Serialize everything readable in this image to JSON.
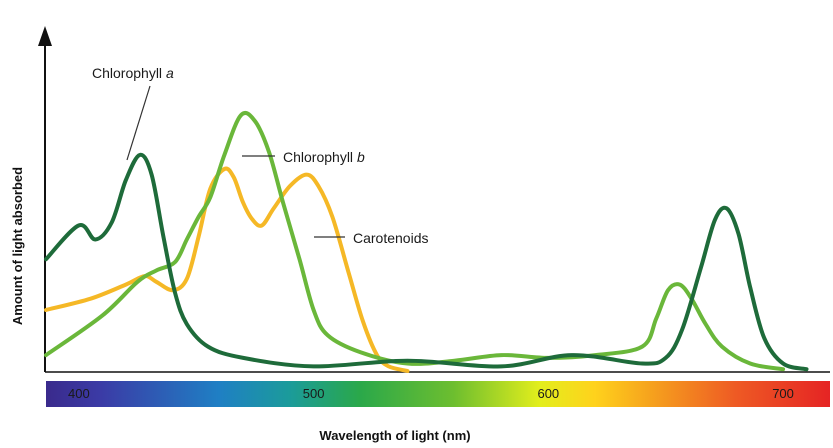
{
  "chart_data": {
    "type": "line",
    "xlabel": "Wavelength of light (nm)",
    "ylabel": "Amount of light absorbed",
    "xlim": [
      386,
      720
    ],
    "ylim": [
      0,
      1
    ],
    "x_ticks": [
      400,
      500,
      600,
      700
    ],
    "grid": false,
    "spectrum_bar": true,
    "series": [
      {
        "name": "Chlorophyll a",
        "name_parts": [
          "Chlorophyll ",
          "a"
        ],
        "color": "#1e6b3a",
        "points": [
          [
            386,
            0.4
          ],
          [
            400,
            0.52
          ],
          [
            407,
            0.47
          ],
          [
            414,
            0.53
          ],
          [
            420,
            0.68
          ],
          [
            426,
            0.77
          ],
          [
            431,
            0.7
          ],
          [
            436,
            0.48
          ],
          [
            441,
            0.28
          ],
          [
            446,
            0.17
          ],
          [
            455,
            0.09
          ],
          [
            470,
            0.05
          ],
          [
            500,
            0.02
          ],
          [
            540,
            0.04
          ],
          [
            580,
            0.02
          ],
          [
            610,
            0.06
          ],
          [
            640,
            0.03
          ],
          [
            650,
            0.05
          ],
          [
            657,
            0.15
          ],
          [
            665,
            0.37
          ],
          [
            671,
            0.54
          ],
          [
            676,
            0.58
          ],
          [
            681,
            0.49
          ],
          [
            686,
            0.3
          ],
          [
            692,
            0.12
          ],
          [
            700,
            0.03
          ],
          [
            710,
            0.01
          ]
        ]
      },
      {
        "name": "Chlorophyll b",
        "name_parts": [
          "Chlorophyll ",
          "b"
        ],
        "color": "#6ab73a",
        "points": [
          [
            386,
            0.06
          ],
          [
            410,
            0.2
          ],
          [
            425,
            0.32
          ],
          [
            433,
            0.36
          ],
          [
            441,
            0.39
          ],
          [
            446,
            0.47
          ],
          [
            451,
            0.55
          ],
          [
            456,
            0.62
          ],
          [
            462,
            0.77
          ],
          [
            469,
            0.91
          ],
          [
            475,
            0.89
          ],
          [
            481,
            0.78
          ],
          [
            487,
            0.6
          ],
          [
            494,
            0.4
          ],
          [
            500,
            0.22
          ],
          [
            506,
            0.13
          ],
          [
            520,
            0.07
          ],
          [
            540,
            0.03
          ],
          [
            560,
            0.04
          ],
          [
            580,
            0.06
          ],
          [
            600,
            0.05
          ],
          [
            620,
            0.06
          ],
          [
            640,
            0.09
          ],
          [
            646,
            0.19
          ],
          [
            651,
            0.29
          ],
          [
            656,
            0.31
          ],
          [
            661,
            0.26
          ],
          [
            667,
            0.17
          ],
          [
            674,
            0.09
          ],
          [
            686,
            0.03
          ],
          [
            700,
            0.01
          ]
        ]
      },
      {
        "name": "Carotenoids",
        "name_parts": [
          "Carotenoids"
        ],
        "color": "#f5b826",
        "points": [
          [
            386,
            0.22
          ],
          [
            405,
            0.26
          ],
          [
            420,
            0.31
          ],
          [
            428,
            0.34
          ],
          [
            433,
            0.32
          ],
          [
            440,
            0.29
          ],
          [
            446,
            0.33
          ],
          [
            451,
            0.48
          ],
          [
            456,
            0.65
          ],
          [
            462,
            0.72
          ],
          [
            466,
            0.69
          ],
          [
            470,
            0.6
          ],
          [
            474,
            0.54
          ],
          [
            478,
            0.52
          ],
          [
            483,
            0.58
          ],
          [
            490,
            0.66
          ],
          [
            497,
            0.7
          ],
          [
            502,
            0.66
          ],
          [
            508,
            0.55
          ],
          [
            515,
            0.35
          ],
          [
            521,
            0.18
          ],
          [
            527,
            0.06
          ],
          [
            532,
            0.02
          ],
          [
            540,
            0.0
          ]
        ]
      }
    ]
  }
}
